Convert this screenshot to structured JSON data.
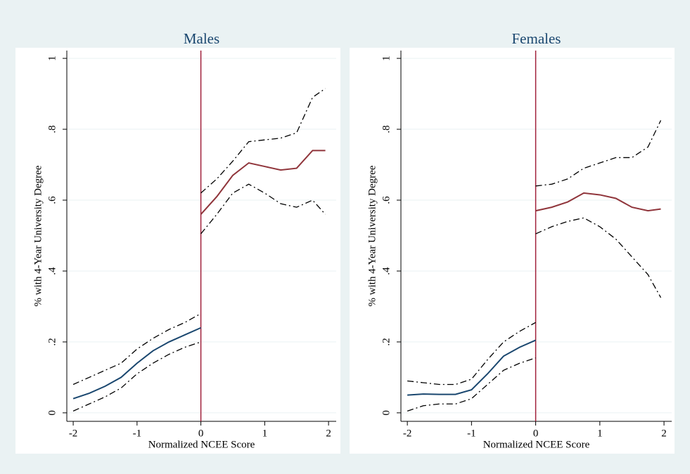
{
  "chart_data": [
    {
      "type": "line",
      "title": "Males",
      "xlabel": "Normalized NCEE Score",
      "ylabel": "% with 4-Year University Degree",
      "xlim": [
        -2.1,
        2.12
      ],
      "ylim": [
        -0.024,
        1.022
      ],
      "xticks": [
        -2,
        -1,
        0,
        1,
        2
      ],
      "yticks": [
        0,
        {
          "value": 0.2,
          "label": ".2"
        },
        {
          "value": 0.4,
          "label": ".4"
        },
        {
          "value": 0.6,
          "label": ".6"
        },
        {
          "value": 0.8,
          "label": ".8"
        },
        1
      ],
      "grid": true,
      "vline": {
        "value": 0,
        "color": "#a0203a"
      },
      "series": [
        {
          "color": "#1a476f",
          "style": "solid",
          "x": [
            -2,
            -1.75,
            -1.5,
            -1.25,
            -1,
            -0.75,
            -0.5,
            -0.25,
            0
          ],
          "values": [
            0.04,
            0.055,
            0.075,
            0.1,
            0.14,
            0.175,
            0.2,
            0.22,
            0.24
          ]
        },
        {
          "color": "#000000",
          "style": "dashdot",
          "x": [
            -2,
            -1.75,
            -1.5,
            -1.25,
            -1,
            -0.75,
            -0.5,
            -0.25,
            0
          ],
          "values": [
            0.08,
            0.1,
            0.12,
            0.14,
            0.18,
            0.21,
            0.235,
            0.255,
            0.28
          ]
        },
        {
          "color": "#000000",
          "style": "dashdot",
          "x": [
            -2,
            -1.75,
            -1.5,
            -1.25,
            -1,
            -0.75,
            -0.5,
            -0.25,
            0
          ],
          "values": [
            0.005,
            0.025,
            0.045,
            0.07,
            0.11,
            0.14,
            0.165,
            0.185,
            0.2
          ]
        },
        {
          "color": "#90353b",
          "style": "solid",
          "x": [
            0,
            0.25,
            0.5,
            0.75,
            1,
            1.25,
            1.5,
            1.75,
            1.95
          ],
          "values": [
            0.56,
            0.61,
            0.67,
            0.705,
            0.695,
            0.685,
            0.69,
            0.74,
            0.74
          ]
        },
        {
          "color": "#000000",
          "style": "dashdot",
          "x": [
            0,
            0.25,
            0.5,
            0.75,
            1,
            1.25,
            1.5,
            1.75,
            1.95
          ],
          "values": [
            0.62,
            0.66,
            0.71,
            0.765,
            0.77,
            0.775,
            0.79,
            0.89,
            0.915
          ]
        },
        {
          "color": "#000000",
          "style": "dashdot",
          "x": [
            0,
            0.25,
            0.5,
            0.75,
            1,
            1.25,
            1.5,
            1.75,
            1.95
          ],
          "values": [
            0.505,
            0.56,
            0.62,
            0.645,
            0.62,
            0.59,
            0.58,
            0.6,
            0.56
          ]
        }
      ]
    },
    {
      "type": "line",
      "title": "Females",
      "xlabel": "Normalized NCEE Score",
      "ylabel": "% with 4-Year University Degree",
      "xlim": [
        -2.1,
        2.12
      ],
      "ylim": [
        -0.024,
        1.022
      ],
      "xticks": [
        -2,
        -1,
        0,
        1,
        2
      ],
      "yticks": [
        0,
        {
          "value": 0.2,
          "label": ".2"
        },
        {
          "value": 0.4,
          "label": ".4"
        },
        {
          "value": 0.6,
          "label": ".6"
        },
        {
          "value": 0.8,
          "label": ".8"
        },
        1
      ],
      "grid": true,
      "vline": {
        "value": 0,
        "color": "#a0203a"
      },
      "series": [
        {
          "color": "#1a476f",
          "style": "solid",
          "x": [
            -2,
            -1.75,
            -1.5,
            -1.25,
            -1,
            -0.75,
            -0.5,
            -0.25,
            0
          ],
          "values": [
            0.05,
            0.053,
            0.052,
            0.052,
            0.065,
            0.11,
            0.16,
            0.185,
            0.205
          ]
        },
        {
          "color": "#000000",
          "style": "dashdot",
          "x": [
            -2,
            -1.75,
            -1.5,
            -1.25,
            -1,
            -0.75,
            -0.5,
            -0.25,
            0
          ],
          "values": [
            0.09,
            0.085,
            0.08,
            0.08,
            0.095,
            0.15,
            0.2,
            0.23,
            0.255
          ]
        },
        {
          "color": "#000000",
          "style": "dashdot",
          "x": [
            -2,
            -1.75,
            -1.5,
            -1.25,
            -1,
            -0.75,
            -0.5,
            -0.25,
            0
          ],
          "values": [
            0.005,
            0.02,
            0.025,
            0.025,
            0.04,
            0.08,
            0.12,
            0.14,
            0.155
          ]
        },
        {
          "color": "#90353b",
          "style": "solid",
          "x": [
            0,
            0.25,
            0.5,
            0.75,
            1,
            1.25,
            1.5,
            1.75,
            1.95
          ],
          "values": [
            0.57,
            0.58,
            0.595,
            0.62,
            0.615,
            0.605,
            0.58,
            0.57,
            0.575
          ]
        },
        {
          "color": "#000000",
          "style": "dashdot",
          "x": [
            0,
            0.25,
            0.5,
            0.75,
            1,
            1.25,
            1.5,
            1.75,
            1.95
          ],
          "values": [
            0.64,
            0.645,
            0.66,
            0.69,
            0.705,
            0.72,
            0.72,
            0.75,
            0.825
          ]
        },
        {
          "color": "#000000",
          "style": "dashdot",
          "x": [
            0,
            0.25,
            0.5,
            0.75,
            1,
            1.25,
            1.5,
            1.75,
            1.95
          ],
          "values": [
            0.505,
            0.525,
            0.54,
            0.55,
            0.525,
            0.49,
            0.44,
            0.39,
            0.325
          ]
        }
      ]
    }
  ]
}
